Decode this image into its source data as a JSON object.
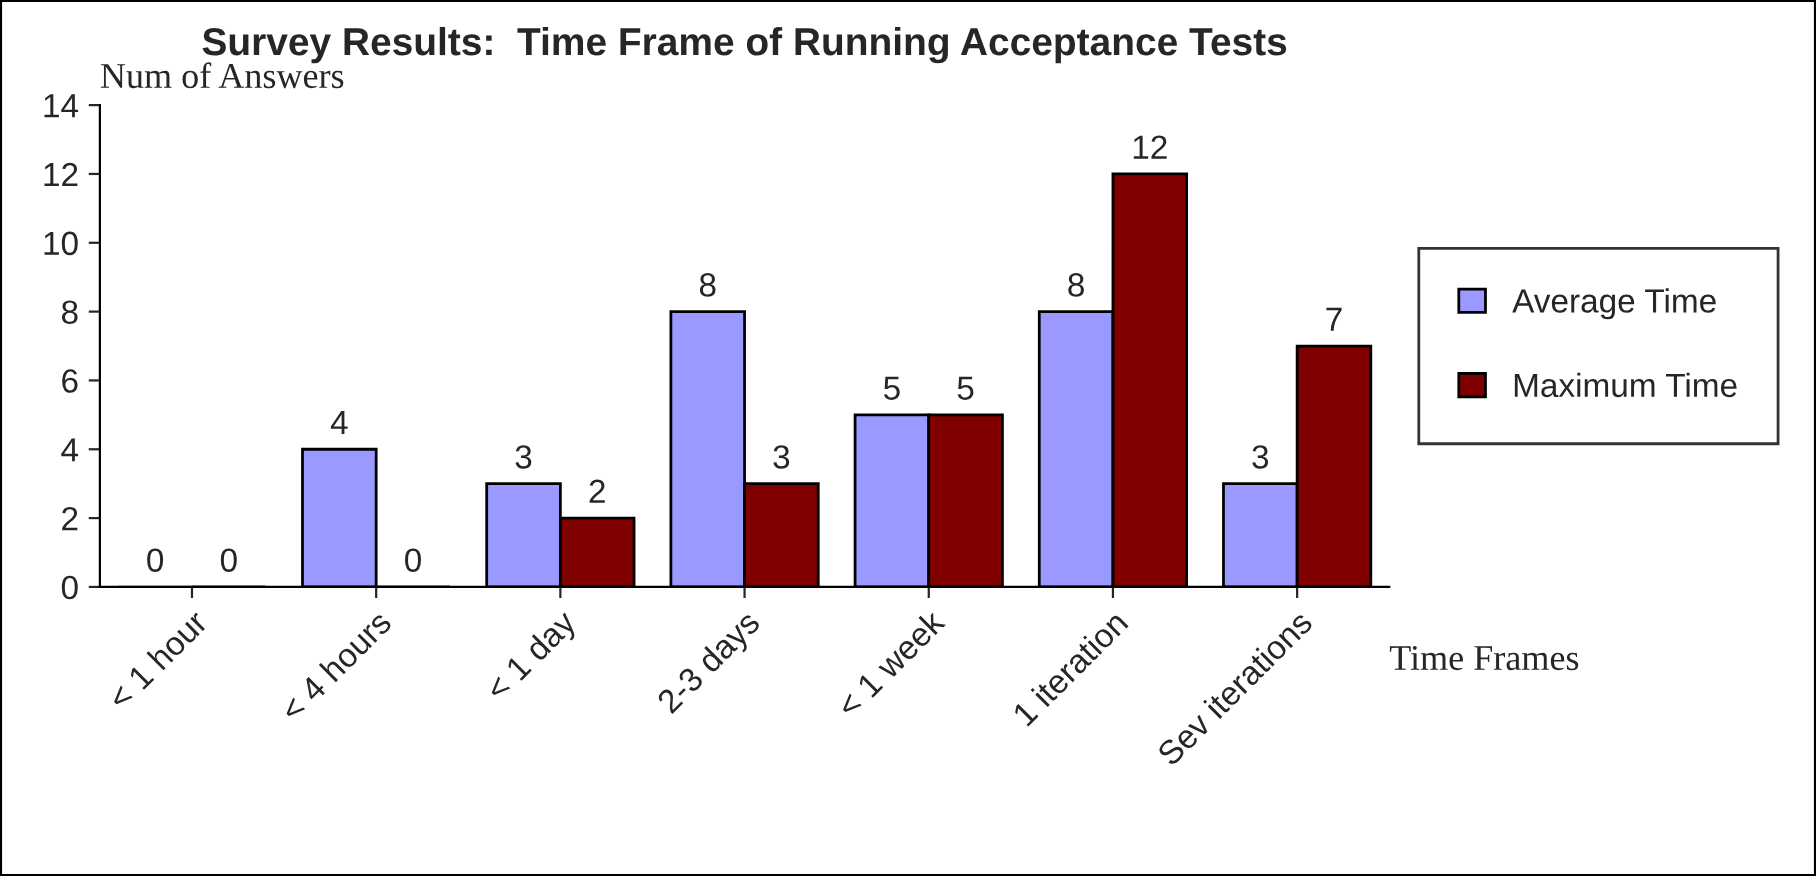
{
  "chart_data": {
    "type": "bar",
    "title": "Survey Results:  Time Frame of Running Acceptance Tests",
    "xlabel": "Time Frames",
    "ylabel": "Num of Answers",
    "categories": [
      "< 1 hour",
      "< 4 hours",
      "< 1 day",
      "2-3 days",
      "< 1 week",
      "1 iteration",
      "Sev iterations"
    ],
    "series": [
      {
        "name": "Average Time",
        "color": "#9999ff",
        "values": [
          0,
          4,
          3,
          8,
          5,
          8,
          3
        ]
      },
      {
        "name": "Maximum Time",
        "color": "#800000",
        "values": [
          0,
          0,
          2,
          3,
          5,
          12,
          7
        ]
      }
    ],
    "ylim": [
      0,
      14
    ],
    "yticks": [
      0,
      2,
      4,
      6,
      8,
      10,
      12,
      14
    ],
    "data_labels": true,
    "grid": false,
    "legend": "right"
  }
}
